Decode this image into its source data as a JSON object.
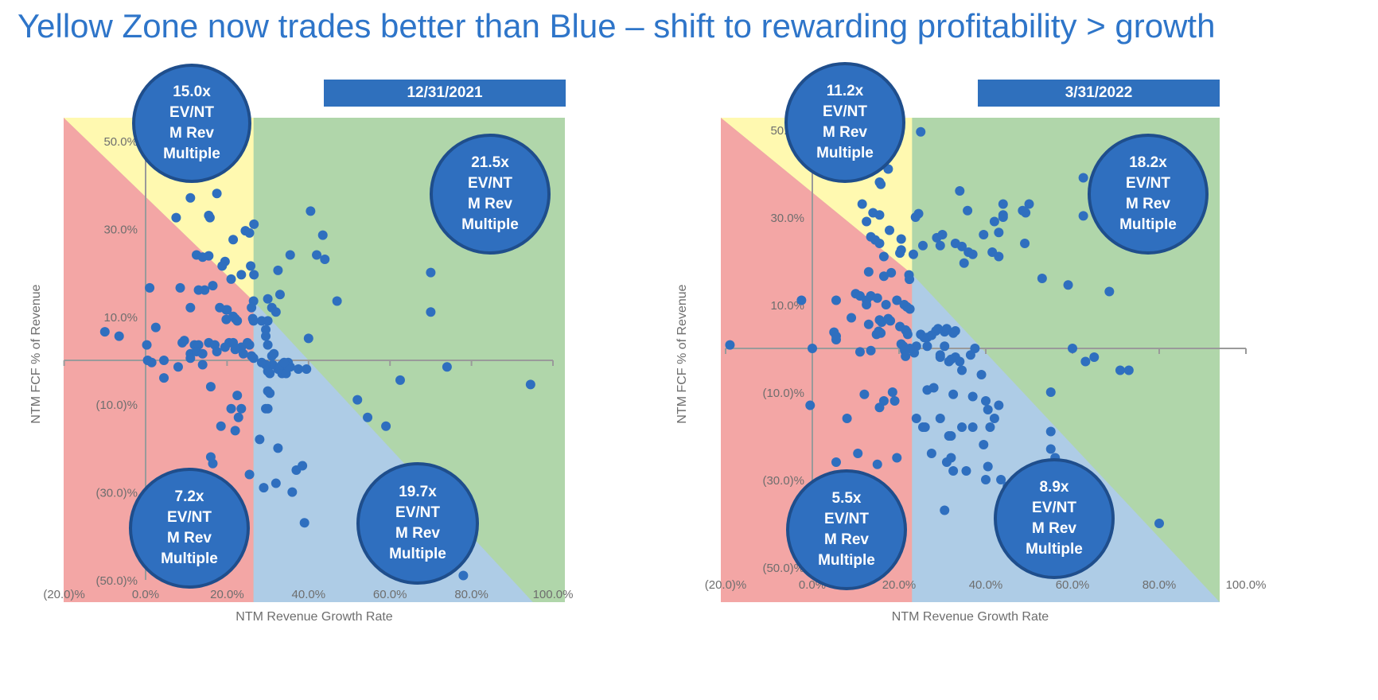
{
  "title": "Yellow Zone now trades better than Blue – shift to rewarding profitability > growth",
  "colors": {
    "title": "#2e75c9",
    "red_zone": "#f3a6a5",
    "yellow_zone": "#fff9b0",
    "green_zone": "#b0d6aa",
    "blue_zone": "#aecce6",
    "point": "#2f6fbf",
    "bubble": "#2f6fbf"
  },
  "chart_data": [
    {
      "type": "scatter",
      "date_label": "12/31/2021",
      "xlabel": "NTM Revenue Growth Rate",
      "ylabel": "NTM FCF % of Revenue",
      "xlim": [
        -20,
        100
      ],
      "ylim": [
        -50,
        50
      ],
      "x_ticks": [
        "(20.0)%",
        "0.0%",
        "20.0%",
        "40.0%",
        "60.0%",
        "80.0%",
        "100.0%"
      ],
      "y_ticks": [
        "50.0%",
        "30.0%",
        "10.0%",
        "(10.0)%",
        "(30.0)%",
        "(50.0)%"
      ],
      "zones": [
        {
          "name": "yellow",
          "multiple": "15.0x",
          "label": [
            "EV/NT",
            "M Rev",
            "Multiple"
          ]
        },
        {
          "name": "green",
          "multiple": "21.5x",
          "label": [
            "EV/NT",
            "M Rev",
            "Multiple"
          ]
        },
        {
          "name": "red",
          "multiple": "7.2x",
          "label": [
            "EV/NT",
            "M Rev",
            "Multiple"
          ]
        },
        {
          "name": "blue",
          "multiple": "19.7x",
          "label": [
            "EV/NT",
            "M Rev",
            "Multiple"
          ]
        }
      ],
      "growth_split": 26.5,
      "rule_sum": 40,
      "points": [
        [
          11.5,
          42
        ],
        [
          11,
          37
        ],
        [
          17.5,
          38
        ],
        [
          7.5,
          32.5
        ],
        [
          15.5,
          33
        ],
        [
          15.8,
          32.5
        ],
        [
          26.6,
          31
        ],
        [
          24.5,
          29.5
        ],
        [
          25.5,
          29
        ],
        [
          21.5,
          27.5
        ],
        [
          12.5,
          24
        ],
        [
          14,
          23.5
        ],
        [
          15.5,
          23.8
        ],
        [
          19.5,
          22.5
        ],
        [
          18.8,
          21.5
        ],
        [
          26.6,
          19.5
        ],
        [
          23.5,
          19.5
        ],
        [
          21,
          18.5
        ],
        [
          16.5,
          17
        ],
        [
          14.5,
          16
        ],
        [
          1,
          16.5
        ],
        [
          8.5,
          16.5
        ],
        [
          26.5,
          13.5
        ],
        [
          11,
          12
        ],
        [
          19.8,
          11.5
        ],
        [
          20,
          11.5
        ],
        [
          21.5,
          10
        ],
        [
          22,
          9.5
        ],
        [
          22.5,
          9
        ],
        [
          2.5,
          7.5
        ],
        [
          -6.5,
          5.5
        ],
        [
          9,
          4
        ],
        [
          9.5,
          4.5
        ],
        [
          12,
          3.5
        ],
        [
          13,
          3.5
        ],
        [
          15.5,
          4
        ],
        [
          17,
          3.5
        ],
        [
          20.5,
          4
        ],
        [
          21.5,
          4
        ],
        [
          23.5,
          3
        ],
        [
          25.5,
          3.5
        ],
        [
          25,
          4
        ],
        [
          0.3,
          3.5
        ],
        [
          11,
          1.5
        ],
        [
          11,
          0.5
        ],
        [
          12.5,
          2
        ],
        [
          17.5,
          2
        ],
        [
          19.5,
          3
        ],
        [
          22,
          2.5
        ],
        [
          24,
          1.5
        ],
        [
          26,
          1
        ],
        [
          26.5,
          0.5
        ],
        [
          0.5,
          0
        ],
        [
          4.5,
          0
        ],
        [
          14,
          -1
        ],
        [
          8,
          -1.5
        ],
        [
          4.5,
          -4
        ],
        [
          16,
          -6
        ],
        [
          22.5,
          -8
        ],
        [
          21,
          -11
        ],
        [
          23.5,
          -11
        ],
        [
          22.8,
          -13
        ],
        [
          18.5,
          -15
        ],
        [
          22,
          -16
        ],
        [
          16,
          -22
        ],
        [
          16.5,
          -23.5
        ],
        [
          25.5,
          -26
        ],
        [
          -10,
          6.5
        ],
        [
          1.5,
          -0.5
        ],
        [
          14,
          1.5
        ],
        [
          29.5,
          5.5
        ],
        [
          30,
          3.5
        ],
        [
          31,
          1
        ],
        [
          31.5,
          1.5
        ],
        [
          31.2,
          -1
        ],
        [
          32.5,
          -2
        ],
        [
          33,
          -1.5
        ],
        [
          33.5,
          -3
        ],
        [
          34,
          -1
        ],
        [
          35.5,
          -1.5
        ],
        [
          34.5,
          -3
        ],
        [
          37.5,
          -2
        ],
        [
          30,
          -7
        ],
        [
          30.5,
          -7.5
        ],
        [
          29.5,
          -11
        ],
        [
          30,
          -11
        ],
        [
          28,
          -18
        ],
        [
          37,
          -25
        ],
        [
          38.5,
          -24
        ],
        [
          32,
          -28
        ],
        [
          29,
          -29
        ],
        [
          36,
          -30
        ],
        [
          39,
          -37
        ],
        [
          32.5,
          -20
        ],
        [
          30.5,
          -3
        ],
        [
          30,
          -2.5
        ],
        [
          29.5,
          -1
        ],
        [
          35,
          -0.5
        ],
        [
          33.5,
          -1
        ],
        [
          28.5,
          -0.5
        ],
        [
          35,
          -1.5
        ],
        [
          34,
          -0.5
        ],
        [
          39.5,
          -2
        ],
        [
          26.5,
          9
        ],
        [
          28.5,
          9
        ],
        [
          30,
          9
        ],
        [
          31,
          12
        ],
        [
          32,
          11
        ],
        [
          29.5,
          7
        ],
        [
          30,
          14
        ],
        [
          32.5,
          20.5
        ],
        [
          33,
          15
        ],
        [
          35.5,
          24
        ],
        [
          42,
          24
        ],
        [
          43.5,
          28.5
        ],
        [
          40.5,
          34
        ],
        [
          47,
          13.5
        ],
        [
          44,
          23
        ],
        [
          40,
          5
        ],
        [
          70,
          20
        ],
        [
          70,
          11
        ],
        [
          62.5,
          -4.5
        ],
        [
          59,
          -15
        ],
        [
          54.5,
          -13
        ],
        [
          74,
          -1.5
        ],
        [
          94.5,
          -5.5
        ],
        [
          78,
          -49
        ],
        [
          52,
          -9
        ],
        [
          25.8,
          21.5
        ],
        [
          26,
          12
        ],
        [
          26.3,
          9.5
        ],
        [
          18.2,
          12
        ],
        [
          19.8,
          9.3
        ],
        [
          13,
          16
        ]
      ]
    },
    {
      "type": "scatter",
      "date_label": "3/31/2022",
      "xlabel": "NTM Revenue Growth Rate",
      "ylabel": "NTM FCF % of Revenue",
      "xlim": [
        -20,
        100
      ],
      "ylim": [
        -50,
        50
      ],
      "x_ticks": [
        "(20.0)%",
        "0.0%",
        "20.0%",
        "40.0%",
        "60.0%",
        "80.0%",
        "100.0%"
      ],
      "y_ticks": [
        "50.0%",
        "30.0%",
        "10.0%",
        "(10.0)%",
        "(30.0)%",
        "(50.0)%"
      ],
      "zones": [
        {
          "name": "yellow",
          "multiple": "11.2x",
          "label": [
            "EV/NT",
            "M Rev",
            "Multiple"
          ]
        },
        {
          "name": "green",
          "multiple": "18.2x",
          "label": [
            "EV/NT",
            "M Rev",
            "Multiple"
          ]
        },
        {
          "name": "red",
          "multiple": "5.5x",
          "label": [
            "EV/NT",
            "M Rev",
            "Multiple"
          ]
        },
        {
          "name": "blue",
          "multiple": "8.9x",
          "label": [
            "EV/NT",
            "M Rev",
            "Multiple"
          ]
        }
      ],
      "growth_split": 23,
      "rule_sum": 40,
      "points": [
        [
          25,
          49.5
        ],
        [
          17.5,
          41
        ],
        [
          15.5,
          38
        ],
        [
          15.8,
          37.5
        ],
        [
          11.5,
          33
        ],
        [
          14,
          31
        ],
        [
          15.5,
          30.5
        ],
        [
          24.5,
          30.8
        ],
        [
          23.8,
          30
        ],
        [
          12.5,
          29
        ],
        [
          17.8,
          27
        ],
        [
          13.5,
          25.5
        ],
        [
          14.5,
          24.8
        ],
        [
          15.5,
          24
        ],
        [
          20.5,
          25
        ],
        [
          20.5,
          22.5
        ],
        [
          20.2,
          21.8
        ],
        [
          23.3,
          21.5
        ],
        [
          16.5,
          21
        ],
        [
          13,
          17.5
        ],
        [
          18.2,
          17.3
        ],
        [
          16.5,
          16.5
        ],
        [
          22.3,
          16.8
        ],
        [
          22.4,
          15.8
        ],
        [
          -2.5,
          11
        ],
        [
          5.5,
          11
        ],
        [
          10,
          12.5
        ],
        [
          11,
          12
        ],
        [
          13.5,
          12
        ],
        [
          12.5,
          11
        ],
        [
          12.5,
          10
        ],
        [
          15,
          11.5
        ],
        [
          17,
          10
        ],
        [
          19.5,
          11
        ],
        [
          21.2,
          10
        ],
        [
          21.8,
          9.5
        ],
        [
          22.5,
          9
        ],
        [
          9,
          7
        ],
        [
          13,
          5.5
        ],
        [
          15.5,
          6.5
        ],
        [
          16,
          6
        ],
        [
          17.5,
          6.8
        ],
        [
          18,
          6.3
        ],
        [
          20.2,
          5
        ],
        [
          21.5,
          4.2
        ],
        [
          21.8,
          3.8
        ],
        [
          22,
          3.2
        ],
        [
          5,
          3.7
        ],
        [
          5.5,
          2.8
        ],
        [
          5.5,
          2
        ],
        [
          0,
          0
        ],
        [
          11,
          -0.8
        ],
        [
          -19,
          0.8
        ],
        [
          13.5,
          -0.5
        ],
        [
          15.8,
          3.5
        ],
        [
          14.8,
          3.2
        ],
        [
          15.3,
          3.9
        ],
        [
          20.5,
          1
        ],
        [
          21,
          0.5
        ],
        [
          21.3,
          -0.5
        ],
        [
          21.5,
          -1.8
        ],
        [
          25,
          3.2
        ],
        [
          25.8,
          2.5
        ],
        [
          26.5,
          2.5
        ],
        [
          24,
          0.5
        ],
        [
          23.5,
          -1
        ],
        [
          22.5,
          0
        ],
        [
          26.5,
          0.5
        ],
        [
          27.5,
          3
        ],
        [
          28.5,
          4
        ],
        [
          29,
          4.5
        ],
        [
          30.5,
          3.8
        ],
        [
          31,
          4.5
        ],
        [
          30.5,
          0.5
        ],
        [
          32.5,
          3.5
        ],
        [
          33,
          4
        ],
        [
          29.5,
          -1.5
        ],
        [
          31.5,
          -3
        ],
        [
          29.5,
          -2
        ],
        [
          33,
          -2
        ],
        [
          36.5,
          -1.5
        ],
        [
          32,
          -2.5
        ],
        [
          34,
          -3
        ],
        [
          37.5,
          0
        ],
        [
          34.5,
          -5
        ],
        [
          39,
          -6
        ],
        [
          26.5,
          -9.5
        ],
        [
          28,
          -9
        ],
        [
          32.5,
          -10.5
        ],
        [
          37,
          -11
        ],
        [
          25.5,
          -18
        ],
        [
          26,
          -18
        ],
        [
          31,
          -26
        ],
        [
          32,
          -25
        ],
        [
          32.5,
          -28
        ],
        [
          39.5,
          -22
        ],
        [
          40.5,
          -27
        ],
        [
          40,
          -30
        ],
        [
          43.5,
          -30
        ],
        [
          45,
          -31.5
        ],
        [
          19.5,
          -25
        ],
        [
          15,
          -26.5
        ],
        [
          10.5,
          -24
        ],
        [
          5.5,
          -26
        ],
        [
          24,
          -16
        ],
        [
          -0.5,
          -13
        ],
        [
          12,
          -10.5
        ],
        [
          15.5,
          -13.5
        ],
        [
          16.5,
          -12
        ],
        [
          18.5,
          -10
        ],
        [
          19,
          -12
        ],
        [
          8,
          -16
        ],
        [
          34.5,
          -18
        ],
        [
          32,
          -20
        ],
        [
          55,
          -19
        ],
        [
          55,
          -23
        ],
        [
          56,
          -25
        ],
        [
          40,
          -12
        ],
        [
          43,
          -13
        ],
        [
          27.5,
          -24
        ],
        [
          35.5,
          -28
        ],
        [
          30.5,
          -37
        ],
        [
          31.5,
          -20
        ],
        [
          37,
          -18
        ],
        [
          29.5,
          -16
        ],
        [
          42,
          -16
        ],
        [
          41,
          -18
        ],
        [
          40.5,
          -14
        ],
        [
          60,
          0
        ],
        [
          63,
          -3
        ],
        [
          65,
          -2
        ],
        [
          73,
          -5
        ],
        [
          80,
          -40
        ],
        [
          71,
          -5
        ],
        [
          68.5,
          13
        ],
        [
          59,
          14.5
        ],
        [
          53,
          16
        ],
        [
          50,
          33
        ],
        [
          49.2,
          31
        ],
        [
          48.5,
          31.5
        ],
        [
          44,
          30.5
        ],
        [
          42,
          29
        ],
        [
          35.8,
          31.5
        ],
        [
          34,
          36
        ],
        [
          49,
          24
        ],
        [
          41.5,
          22
        ],
        [
          43,
          21
        ],
        [
          44,
          30
        ],
        [
          55,
          -10
        ],
        [
          25.5,
          23.5
        ],
        [
          28.7,
          25.3
        ],
        [
          30,
          26
        ],
        [
          34.5,
          23.3
        ],
        [
          35,
          19.5
        ],
        [
          39.5,
          26
        ],
        [
          43,
          26.5
        ],
        [
          44,
          33
        ],
        [
          62.5,
          39
        ],
        [
          62.5,
          30.3
        ],
        [
          36,
          22
        ],
        [
          37,
          21.5
        ],
        [
          33,
          24
        ],
        [
          29.5,
          23.5
        ]
      ]
    }
  ]
}
